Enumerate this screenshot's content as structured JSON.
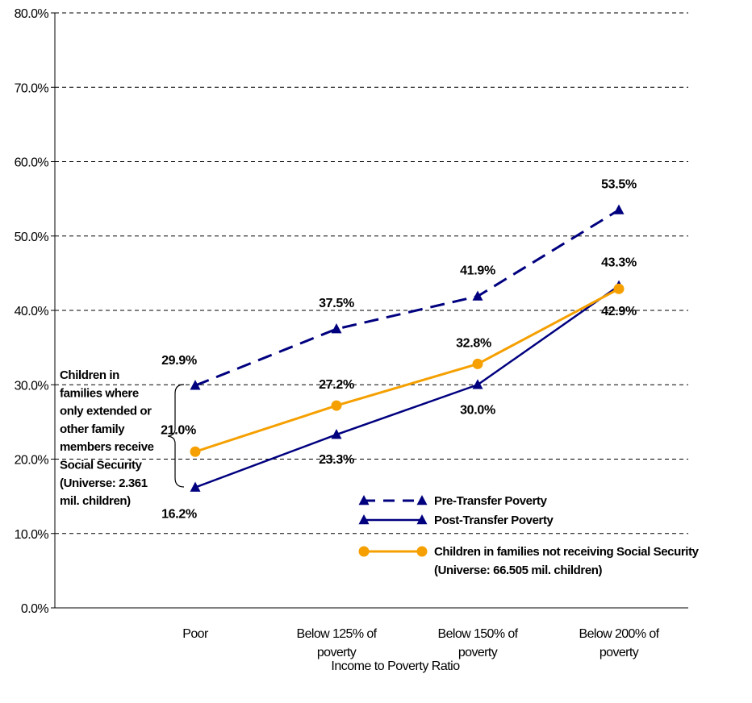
{
  "chart_data": {
    "type": "line",
    "xlabel": "Income to Poverty Ratio",
    "ylabel": "",
    "ylim": [
      0,
      80
    ],
    "yticks": [
      "0.0%",
      "10.0%",
      "20.0%",
      "30.0%",
      "40.0%",
      "50.0%",
      "60.0%",
      "70.0%",
      "80.0%"
    ],
    "categories": [
      [
        "Poor"
      ],
      [
        "Below 125% of",
        "poverty"
      ],
      [
        "Below 150% of",
        "poverty"
      ],
      [
        "Below 200% of",
        "poverty"
      ]
    ],
    "grid": "dashed horizontal",
    "series": [
      {
        "name": "Pre-Transfer Poverty",
        "style": "dashed",
        "marker": "triangle",
        "color": "#00007f",
        "values": [
          29.9,
          37.5,
          41.9,
          53.5
        ],
        "labels": [
          "29.9%",
          "37.5%",
          "41.9%",
          "53.5%"
        ]
      },
      {
        "name": "Post-Transfer Poverty",
        "style": "solid",
        "marker": "triangle",
        "color": "#00007f",
        "values": [
          16.2,
          23.3,
          30.0,
          43.3
        ],
        "labels": [
          "16.2%",
          "23.3%",
          "30.0%",
          "43.3%"
        ]
      },
      {
        "name": "Children in families not receiving Social Security",
        "name_line2": "(Universe: 66.505 mil. children)",
        "style": "solid",
        "marker": "circle",
        "color": "#f5a000",
        "values": [
          21.0,
          27.2,
          32.8,
          42.9
        ],
        "labels": [
          "21.0%",
          "27.2%",
          "32.8%",
          "42.9%"
        ]
      }
    ],
    "annotation": {
      "lines": [
        "Children in",
        "families where",
        "only extended or",
        "other family",
        "members receive",
        "Social Security",
        "(Universe: 2.361",
        "mil. children)"
      ]
    }
  }
}
